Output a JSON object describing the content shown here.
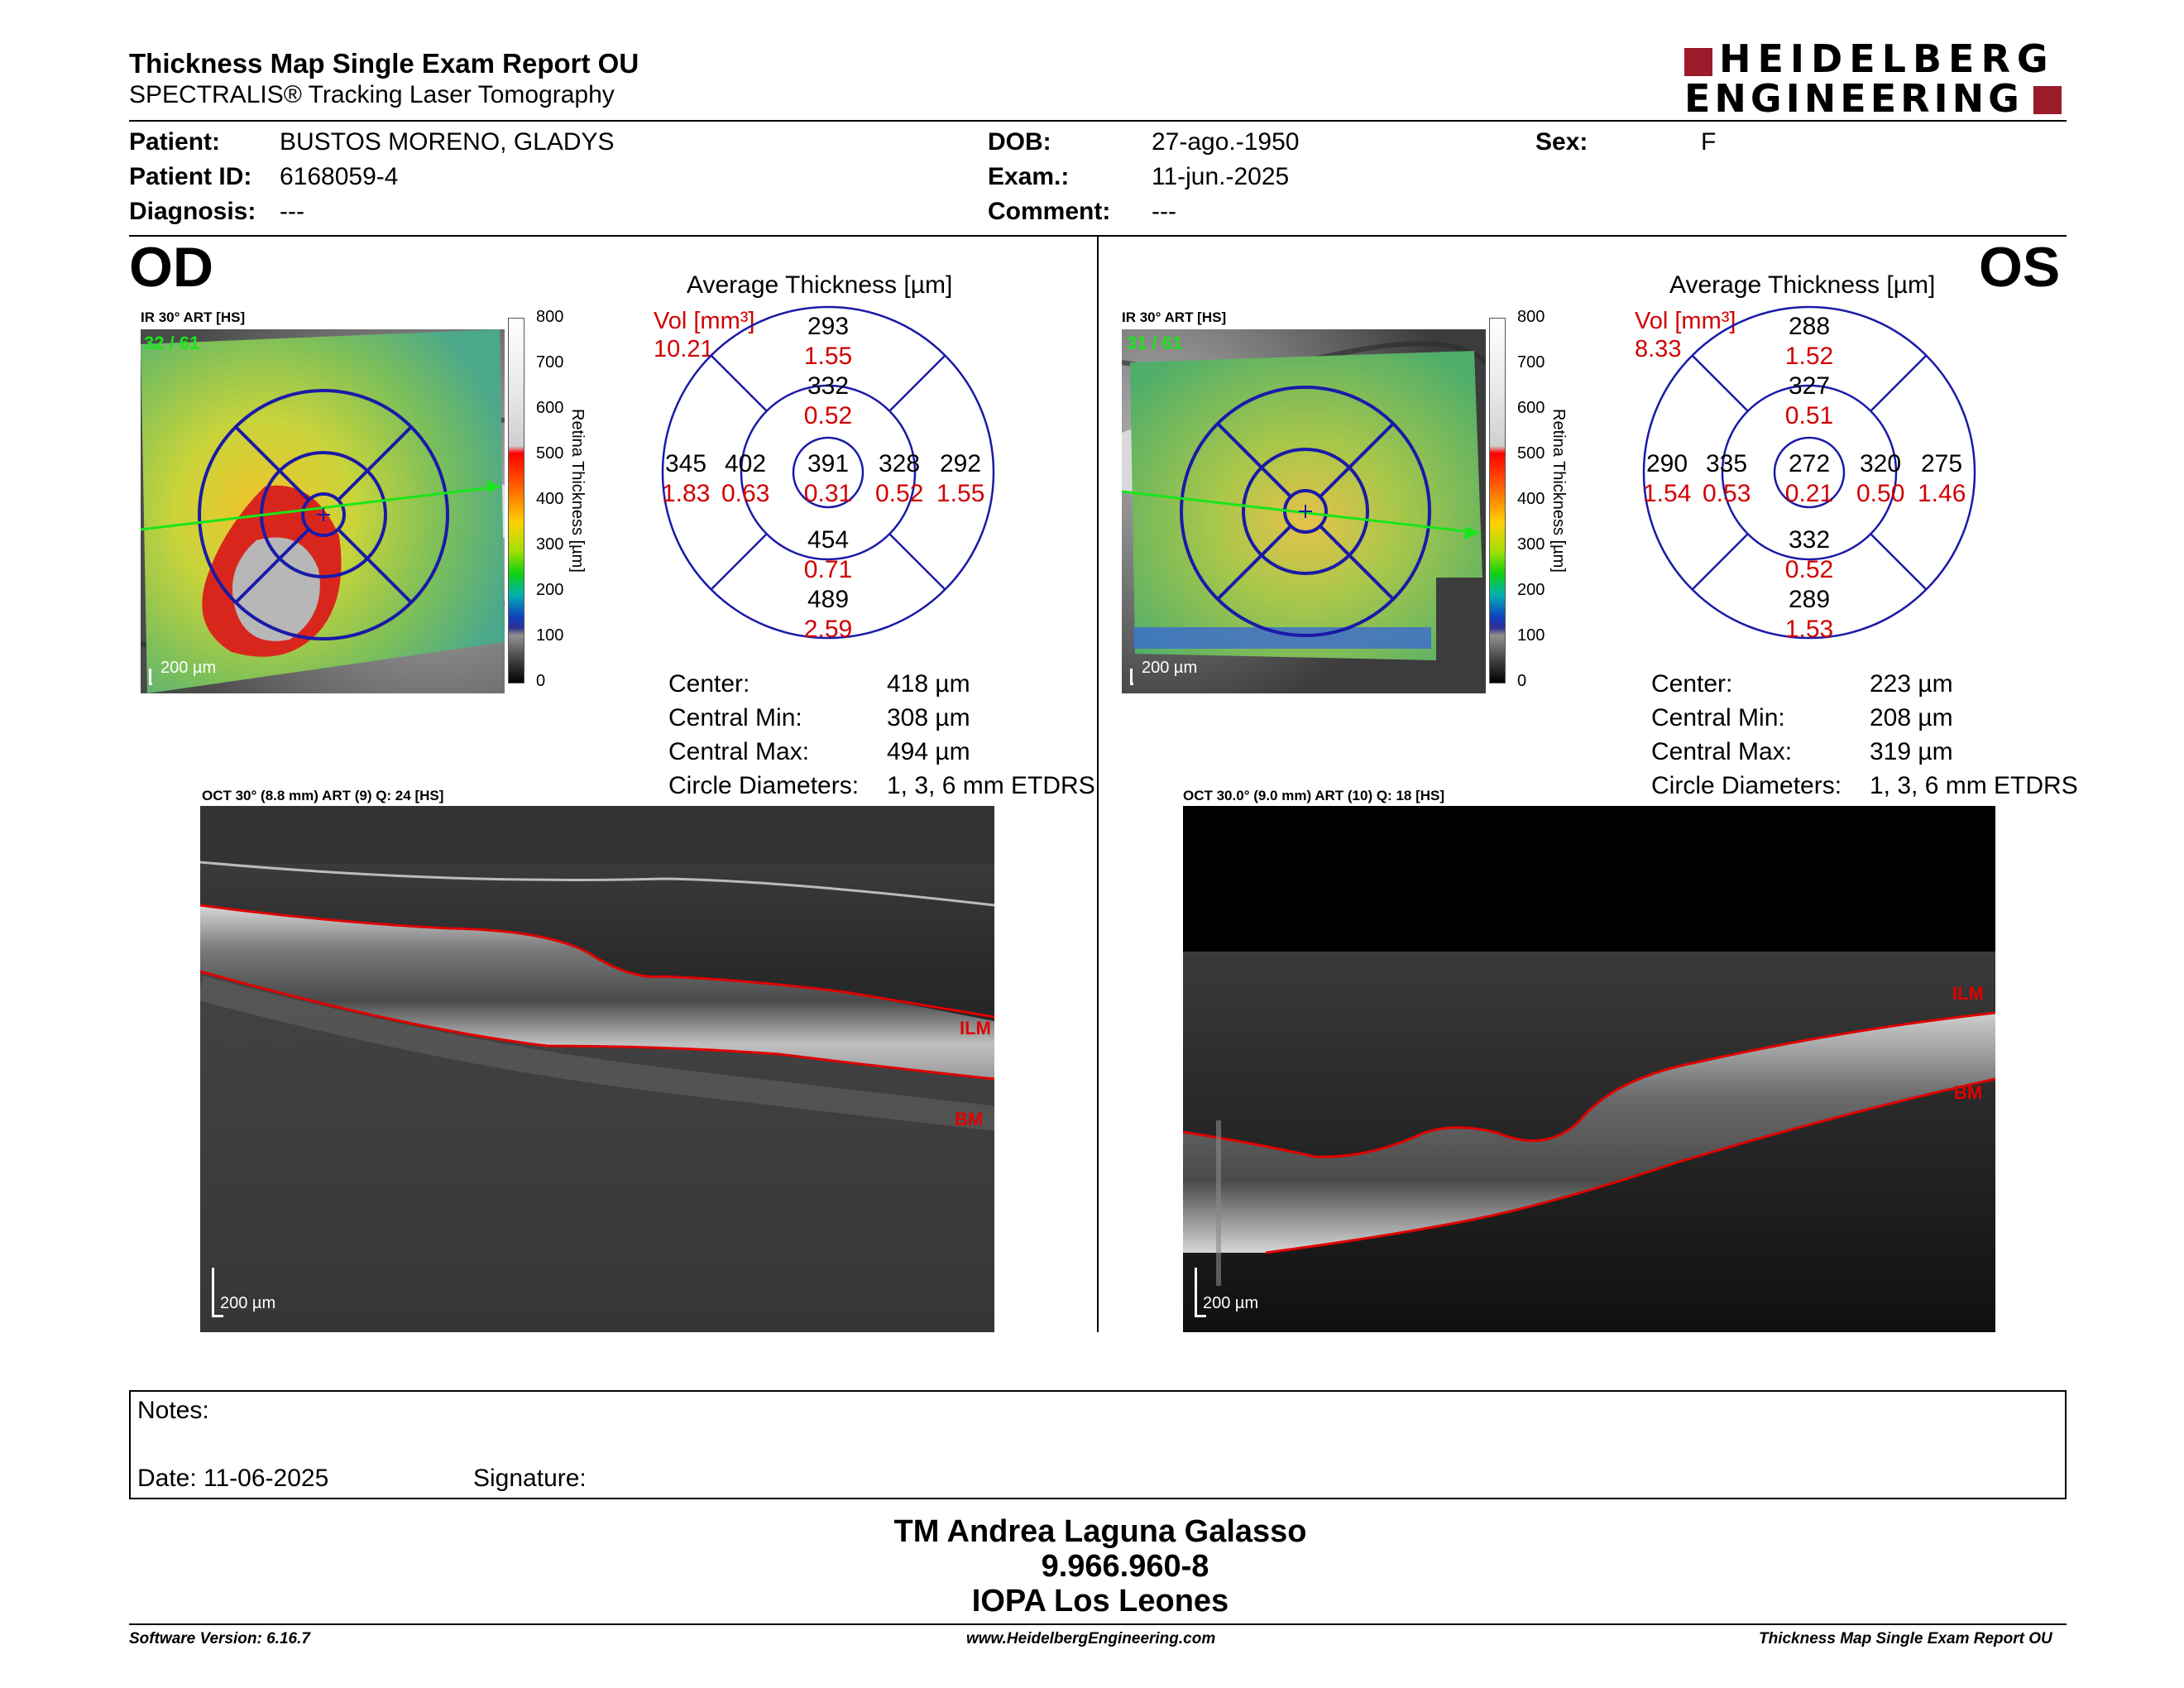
{
  "header": {
    "title": "Thickness Map Single Exam Report OU",
    "subtitle": "SPECTRALIS® Tracking Laser Tomography",
    "logo_line1": "HEIDELBERG",
    "logo_line2": "ENGINEERING"
  },
  "patient": {
    "patient_label": "Patient:",
    "patient_value": "BUSTOS MORENO, GLADYS",
    "id_label": "Patient ID:",
    "id_value": "6168059-4",
    "diagnosis_label": "Diagnosis:",
    "diagnosis_value": "---",
    "dob_label": "DOB:",
    "dob_value": "27-ago.-1950",
    "exam_label": "Exam.:",
    "exam_value": "11-jun.-2025",
    "comment_label": "Comment:",
    "comment_value": "---",
    "sex_label": "Sex:",
    "sex_value": "F"
  },
  "scale": {
    "ticks": [
      "800",
      "700",
      "600",
      "500",
      "400",
      "300",
      "200",
      "100",
      "0"
    ],
    "title": "Retina Thickness [µm]"
  },
  "od": {
    "eye": "OD",
    "ir_label": "IR 30° ART [HS]",
    "ir_count": "32 / 61",
    "scalebar": "200 µm",
    "avg_title": "Average Thickness [µm]",
    "vol_label": "Vol [mm³]",
    "vol_value": "10.21",
    "grid": {
      "outer_sup": "293",
      "outer_sup_vol": "1.55",
      "inner_sup": "332",
      "inner_sup_vol": "0.52",
      "outer_temp": "345",
      "outer_temp_vol": "1.83",
      "inner_temp": "402",
      "inner_temp_vol": "0.63",
      "center": "391",
      "center_vol": "0.31",
      "inner_nas": "328",
      "inner_nas_vol": "0.52",
      "outer_nas": "292",
      "outer_nas_vol": "1.55",
      "inner_inf": "454",
      "inner_inf_vol": "0.71",
      "outer_inf": "489",
      "outer_inf_vol": "2.59"
    },
    "stats": {
      "center_label": "Center:",
      "center_value": "418 µm",
      "min_label": "Central Min:",
      "min_value": "308 µm",
      "max_label": "Central Max:",
      "max_value": "494 µm",
      "diam_label": "Circle Diameters:",
      "diam_value": "1, 3, 6 mm ETDRS"
    },
    "oct_label": "OCT 30° (8.8 mm) ART (9) Q: 24 [HS]",
    "ilm": "ILM",
    "bm": "BM",
    "oct_scalebar": "200 µm"
  },
  "os": {
    "eye": "OS",
    "ir_label": "IR 30° ART [HS]",
    "ir_count": "31 / 61",
    "scalebar": "200 µm",
    "avg_title": "Average Thickness [µm]",
    "vol_label": "Vol [mm³]",
    "vol_value": "8.33",
    "grid": {
      "outer_sup": "288",
      "outer_sup_vol": "1.52",
      "inner_sup": "327",
      "inner_sup_vol": "0.51",
      "outer_temp": "290",
      "outer_temp_vol": "1.54",
      "inner_temp": "335",
      "inner_temp_vol": "0.53",
      "center": "272",
      "center_vol": "0.21",
      "inner_nas": "320",
      "inner_nas_vol": "0.50",
      "outer_nas": "275",
      "outer_nas_vol": "1.46",
      "inner_inf": "332",
      "inner_inf_vol": "0.52",
      "outer_inf": "289",
      "outer_inf_vol": "1.53"
    },
    "stats": {
      "center_label": "Center:",
      "center_value": "223 µm",
      "min_label": "Central Min:",
      "min_value": "208 µm",
      "max_label": "Central Max:",
      "max_value": "319 µm",
      "diam_label": "Circle Diameters:",
      "diam_value": "1, 3, 6 mm ETDRS"
    },
    "oct_label": "OCT 30.0° (9.0 mm) ART (10) Q: 18 [HS]",
    "ilm": "ILM",
    "bm": "BM",
    "oct_scalebar": "200 µm"
  },
  "notes": {
    "notes_label": "Notes:",
    "date_label": "Date: 11-06-2025",
    "signature_label": "Signature:"
  },
  "signer": {
    "name": "TM Andrea Laguna Galasso",
    "id": "9.966.960-8",
    "org": "IOPA Los Leones"
  },
  "footer": {
    "software": "Software Version: 6.16.7",
    "website": "www.HeidelbergEngineering.com",
    "report": "Thickness Map Single Exam Report OU"
  },
  "colors": {
    "grid_blue": "#1a1aa8",
    "vol_red": "#d00000",
    "logo_red": "#9b1b2a",
    "ilm_red": "#e00000",
    "scan_green": "#19e619"
  }
}
